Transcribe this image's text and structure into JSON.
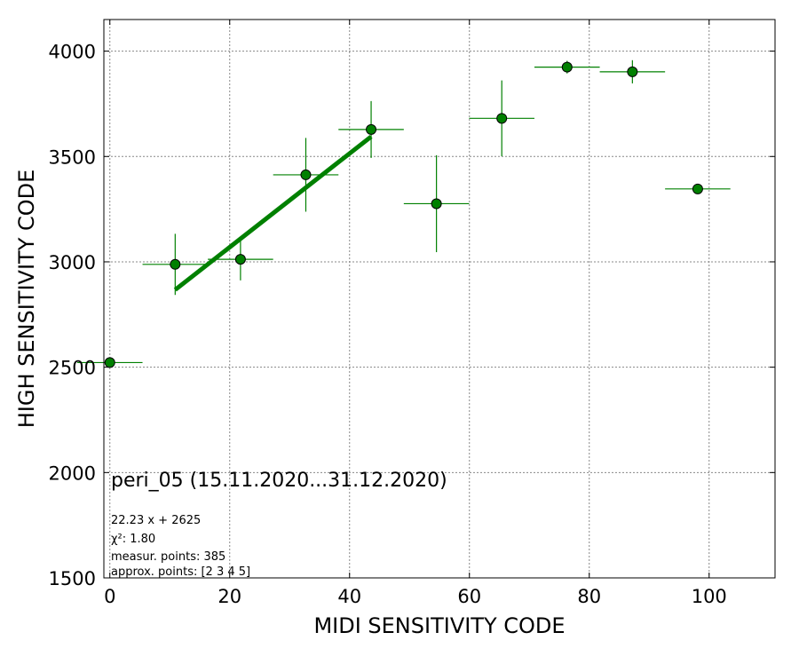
{
  "chart_data": {
    "type": "scatter",
    "xlabel": "MIDI SENSITIVITY CODE",
    "ylabel": "HIGH SENSITIVITY CODE",
    "xlim": [
      -1,
      111
    ],
    "ylim": [
      1500,
      4150
    ],
    "xticks": [
      0,
      20,
      40,
      60,
      80,
      100
    ],
    "yticks": [
      1500,
      2000,
      2500,
      3000,
      3500,
      4000
    ],
    "grid": true,
    "annotation_title": "peri_05 (15.11.2020...31.12.2020)",
    "annotation_lines": [
      "22.23 x + 2625",
      "χ²: 1.80",
      "measur. points: 385",
      "approx. points: [2 3 4 5]"
    ],
    "series": [
      {
        "marker_color": "#008000",
        "x": [
          0,
          10.9,
          21.8,
          32.7,
          43.6,
          54.5,
          65.4,
          76.3,
          87.2,
          98.1
        ],
        "y": [
          2522,
          2988,
          3012,
          3413,
          3628,
          3276,
          3681,
          3924,
          3902,
          3346
        ],
        "xerr": [
          5.45,
          5.45,
          5.45,
          5.45,
          5.45,
          5.45,
          5.45,
          5.45,
          5.45,
          5.45
        ],
        "yerr": [
          8,
          145,
          100,
          175,
          135,
          230,
          180,
          30,
          55,
          8
        ]
      }
    ],
    "fit": {
      "slope": 22.23,
      "intercept": 2625,
      "x_range": [
        10.9,
        43.6
      ],
      "color": "#008000"
    }
  }
}
